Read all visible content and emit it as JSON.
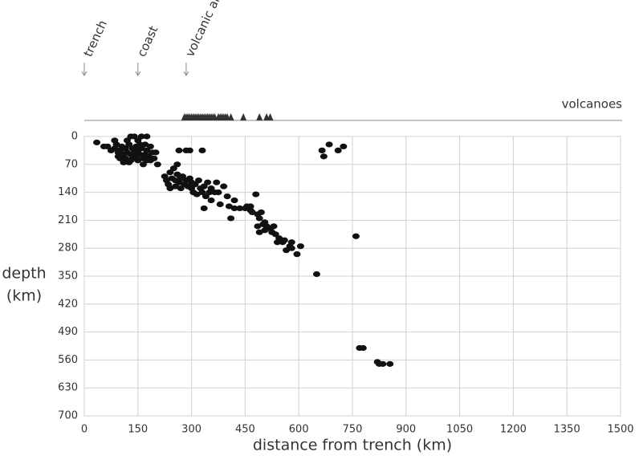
{
  "chart_data": {
    "type": "scatter",
    "xlabel": "distance from trench (km)",
    "ylabel_lines": [
      "depth",
      "(km)"
    ],
    "xlim": [
      0,
      1500
    ],
    "ylim": [
      0,
      700
    ],
    "y_inverted": true,
    "xticks": [
      0,
      150,
      300,
      450,
      600,
      750,
      900,
      1050,
      1200,
      1350,
      1500
    ],
    "yticks": [
      0,
      70,
      140,
      210,
      280,
      350,
      420,
      490,
      560,
      630,
      700
    ],
    "grid": true,
    "color": "#111111",
    "annotations": [
      {
        "text": "trench",
        "x": 0
      },
      {
        "text": "coast",
        "x": 150
      },
      {
        "text": "volcanic arc",
        "x": 285
      }
    ],
    "volcanoes": {
      "label": "volcanoes",
      "x": [
        280,
        285,
        290,
        295,
        300,
        305,
        310,
        315,
        320,
        325,
        330,
        335,
        340,
        345,
        350,
        355,
        360,
        365,
        375,
        380,
        385,
        390,
        395,
        400,
        410,
        445,
        490,
        510,
        520
      ]
    },
    "x": [
      35,
      55,
      65,
      75,
      85,
      85,
      90,
      95,
      95,
      100,
      105,
      110,
      115,
      115,
      120,
      125,
      125,
      130,
      130,
      135,
      135,
      140,
      140,
      145,
      145,
      150,
      150,
      150,
      155,
      160,
      160,
      165,
      165,
      170,
      170,
      175,
      175,
      180,
      185,
      185,
      190,
      200,
      205,
      110,
      100,
      120,
      130,
      155,
      175,
      195,
      265,
      285,
      295,
      330,
      225,
      230,
      235,
      240,
      240,
      245,
      250,
      255,
      255,
      260,
      260,
      265,
      270,
      270,
      275,
      280,
      285,
      290,
      295,
      300,
      300,
      305,
      310,
      315,
      320,
      325,
      330,
      335,
      335,
      340,
      345,
      350,
      355,
      355,
      365,
      370,
      375,
      380,
      390,
      400,
      405,
      410,
      420,
      420,
      435,
      450,
      455,
      465,
      465,
      470,
      480,
      485,
      485,
      490,
      490,
      495,
      500,
      505,
      505,
      510,
      520,
      525,
      530,
      535,
      540,
      545,
      555,
      560,
      565,
      575,
      580,
      580,
      595,
      605,
      650,
      665,
      670,
      685,
      710,
      725,
      760,
      770,
      780,
      820,
      825,
      835,
      855
    ],
    "y": [
      15,
      25,
      25,
      35,
      10,
      30,
      20,
      40,
      50,
      35,
      25,
      45,
      30,
      55,
      40,
      20,
      65,
      0,
      45,
      30,
      55,
      0,
      40,
      25,
      50,
      10,
      35,
      60,
      45,
      0,
      30,
      55,
      70,
      20,
      45,
      0,
      35,
      50,
      25,
      60,
      40,
      40,
      70,
      65,
      55,
      10,
      60,
      20,
      60,
      55,
      35,
      35,
      35,
      35,
      100,
      110,
      120,
      90,
      130,
      105,
      80,
      110,
      125,
      70,
      95,
      115,
      105,
      130,
      100,
      120,
      110,
      125,
      105,
      130,
      115,
      140,
      120,
      145,
      110,
      130,
      140,
      125,
      180,
      150,
      115,
      140,
      130,
      160,
      140,
      115,
      140,
      170,
      125,
      150,
      175,
      205,
      160,
      180,
      180,
      180,
      175,
      175,
      185,
      190,
      145,
      195,
      225,
      205,
      240,
      190,
      220,
      215,
      235,
      225,
      230,
      240,
      225,
      245,
      265,
      255,
      265,
      260,
      285,
      275,
      265,
      280,
      295,
      275,
      345,
      35,
      50,
      20,
      35,
      25,
      250,
      530,
      530,
      565,
      570,
      570,
      570
    ]
  }
}
